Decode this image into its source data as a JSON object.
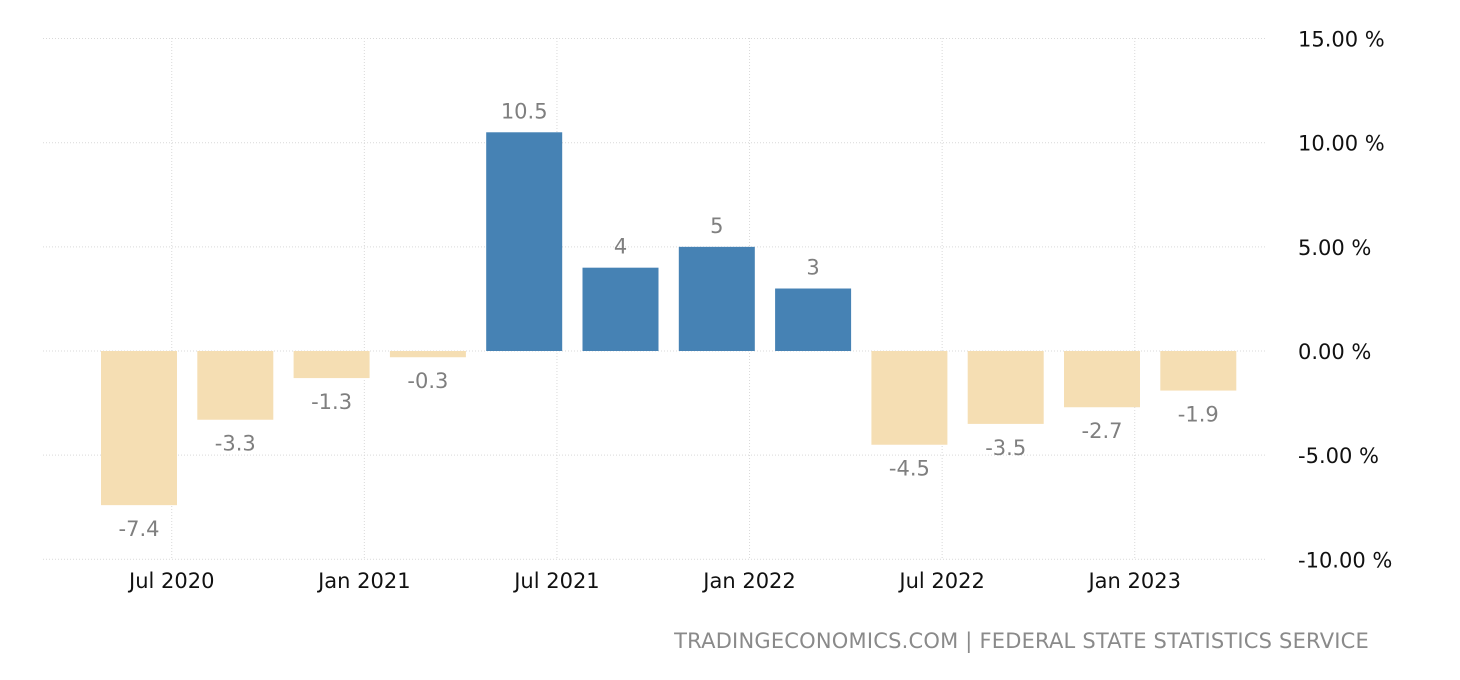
{
  "chart_data": {
    "type": "bar",
    "categories": [
      "Q2 2020",
      "Q3 2020",
      "Q4 2020",
      "Q1 2021",
      "Q2 2021",
      "Q3 2021",
      "Q4 2021",
      "Q1 2022",
      "Q2 2022",
      "Q3 2022",
      "Q4 2022",
      "Q1 2023"
    ],
    "values": [
      -7.4,
      -3.3,
      -1.3,
      -0.3,
      10.5,
      4,
      5,
      3,
      -4.5,
      -3.5,
      -2.7,
      -1.9
    ],
    "data_labels": [
      "-7.4",
      "-3.3",
      "-1.3",
      "-0.3",
      "10.5",
      "4",
      "5",
      "3",
      "-4.5",
      "-3.5",
      "-2.7",
      "-1.9"
    ],
    "x_tick_labels": [
      "Jul 2020",
      "Jan 2021",
      "Jul 2021",
      "Jan 2022",
      "Jul 2022",
      "Jan 2023"
    ],
    "y_tick_values": [
      15,
      10,
      5,
      0,
      -5,
      -10
    ],
    "y_tick_labels": [
      "15.00 %",
      "10.00 %",
      "5.00 %",
      "0.00 %",
      "-5.00 %",
      "-10.00 %"
    ],
    "ylim": [
      -10,
      15
    ],
    "y_axis_position": "right",
    "grid": true,
    "title": "",
    "xlabel": "",
    "ylabel": "",
    "colors": {
      "positive": "#4682B4",
      "negative": "#F5DEB3",
      "label": "#7f7f7f",
      "grid": "#d9d9d9"
    }
  },
  "source": "TRADINGECONOMICS.COM | FEDERAL STATE STATISTICS SERVICE"
}
